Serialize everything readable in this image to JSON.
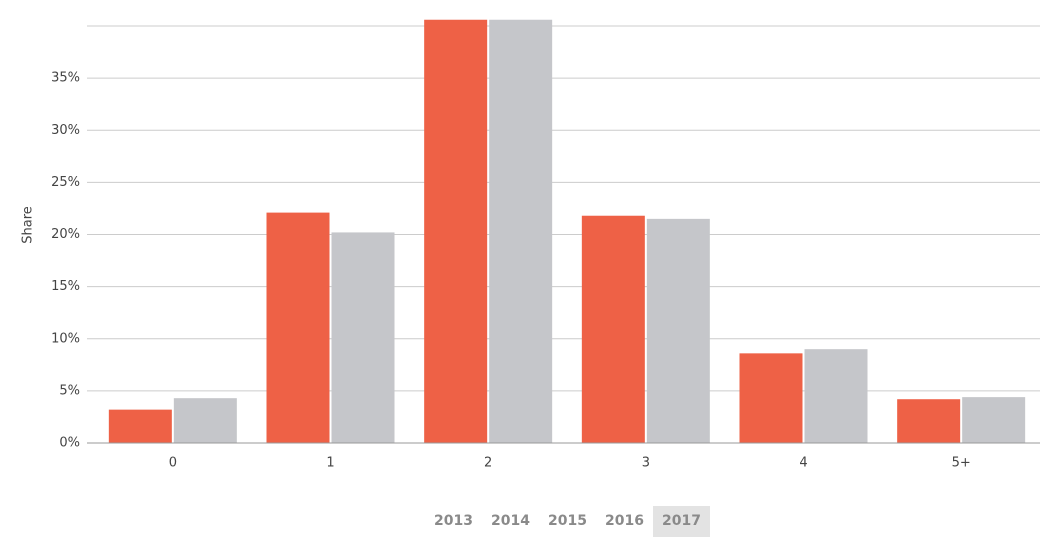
{
  "chart_data": {
    "type": "bar",
    "y_label": "Share",
    "categories": [
      "0",
      "1",
      "2",
      "3",
      "4",
      "5+"
    ],
    "series": [
      {
        "color": "#ee6146",
        "values": [
          3.2,
          22.1,
          40.6,
          21.8,
          8.6,
          4.2
        ]
      },
      {
        "color": "#c5c6ca",
        "values": [
          4.3,
          20.2,
          40.6,
          21.5,
          9.0,
          4.4
        ]
      }
    ],
    "ylim": [
      0,
      40
    ],
    "yticks": [
      {
        "value": 0,
        "label": "0%"
      },
      {
        "value": 5,
        "label": "5%"
      },
      {
        "value": 10,
        "label": "10%"
      },
      {
        "value": 15,
        "label": "15%"
      },
      {
        "value": 20,
        "label": "20%"
      },
      {
        "value": 25,
        "label": "25%"
      },
      {
        "value": 30,
        "label": "30%"
      },
      {
        "value": 35,
        "label": "35%"
      }
    ],
    "grid": true,
    "years": [
      "2013",
      "2014",
      "2015",
      "2016",
      "2017"
    ]
  }
}
